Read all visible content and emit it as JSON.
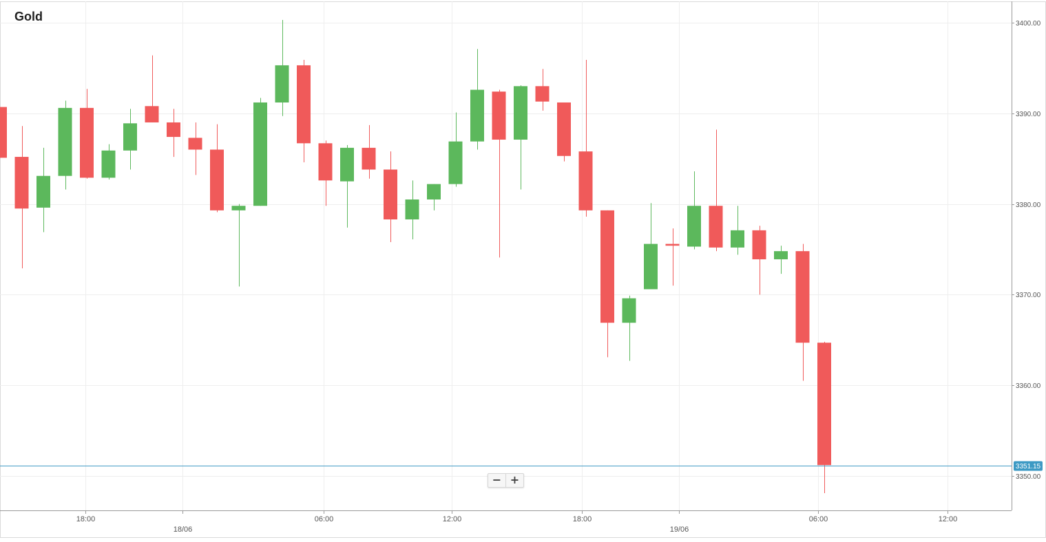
{
  "title": "Gold",
  "zoom": {
    "out_label": "−",
    "in_label": "+"
  },
  "colors": {
    "up": "#5cb85c",
    "down": "#f05a5a",
    "price_line": "#3d9ac4",
    "grid": "#eeeeee",
    "axis_text": "#555555"
  },
  "chart_data": {
    "type": "candlestick",
    "title": "Gold",
    "ylim": [
      3346,
      3402
    ],
    "y_ticks": [
      3400,
      3390,
      3380,
      3370,
      3360,
      3350
    ],
    "y_tick_labels": [
      "3400.00",
      "3390.00",
      "3380.00",
      "3370.00",
      "3360.00",
      "3350.00"
    ],
    "x_labels": [
      {
        "time": "18:00",
        "date": ""
      },
      {
        "time": "",
        "date": "18/06"
      },
      {
        "time": "06:00",
        "date": ""
      },
      {
        "time": "12:00",
        "date": ""
      },
      {
        "time": "18:00",
        "date": ""
      },
      {
        "time": "",
        "date": "19/06"
      },
      {
        "time": "06:00",
        "date": ""
      },
      {
        "time": "12:00",
        "date": ""
      }
    ],
    "current_price": 3351.15,
    "current_price_label": "3351.15",
    "candles": [
      {
        "o": 3390.7,
        "h": 3390.7,
        "l": 3385.1,
        "c": 3385.1
      },
      {
        "o": 3385.2,
        "h": 3388.6,
        "l": 3372.9,
        "c": 3379.5
      },
      {
        "o": 3379.6,
        "h": 3386.2,
        "l": 3376.9,
        "c": 3383.1
      },
      {
        "o": 3383.1,
        "h": 3391.4,
        "l": 3381.6,
        "c": 3390.6
      },
      {
        "o": 3390.6,
        "h": 3392.7,
        "l": 3382.8,
        "c": 3382.9
      },
      {
        "o": 3382.9,
        "h": 3386.6,
        "l": 3382.7,
        "c": 3385.9
      },
      {
        "o": 3385.9,
        "h": 3390.5,
        "l": 3383.8,
        "c": 3388.9
      },
      {
        "o": 3390.8,
        "h": 3396.4,
        "l": 3389.0,
        "c": 3389.0
      },
      {
        "o": 3389.0,
        "h": 3390.5,
        "l": 3385.2,
        "c": 3387.4
      },
      {
        "o": 3387.3,
        "h": 3389.0,
        "l": 3383.2,
        "c": 3386.0
      },
      {
        "o": 3386.0,
        "h": 3388.8,
        "l": 3379.1,
        "c": 3379.3
      },
      {
        "o": 3379.3,
        "h": 3380.0,
        "l": 3370.9,
        "c": 3379.8
      },
      {
        "o": 3379.8,
        "h": 3391.7,
        "l": 3379.8,
        "c": 3391.2
      },
      {
        "o": 3391.2,
        "h": 3400.3,
        "l": 3389.7,
        "c": 3395.3
      },
      {
        "o": 3395.3,
        "h": 3395.9,
        "l": 3384.6,
        "c": 3386.7
      },
      {
        "o": 3386.7,
        "h": 3387.0,
        "l": 3379.8,
        "c": 3382.6
      },
      {
        "o": 3382.5,
        "h": 3386.5,
        "l": 3377.4,
        "c": 3386.2
      },
      {
        "o": 3386.2,
        "h": 3388.7,
        "l": 3382.8,
        "c": 3383.8
      },
      {
        "o": 3383.8,
        "h": 3385.8,
        "l": 3375.8,
        "c": 3378.3
      },
      {
        "o": 3378.3,
        "h": 3382.6,
        "l": 3376.1,
        "c": 3380.5
      },
      {
        "o": 3380.5,
        "h": 3382.2,
        "l": 3379.3,
        "c": 3382.2
      },
      {
        "o": 3382.2,
        "h": 3390.1,
        "l": 3381.9,
        "c": 3386.9
      },
      {
        "o": 3386.9,
        "h": 3397.1,
        "l": 3386.0,
        "c": 3392.6
      },
      {
        "o": 3392.4,
        "h": 3392.6,
        "l": 3374.1,
        "c": 3387.1
      },
      {
        "o": 3387.1,
        "h": 3393.1,
        "l": 3381.6,
        "c": 3393.0
      },
      {
        "o": 3393.0,
        "h": 3394.9,
        "l": 3390.3,
        "c": 3391.3
      },
      {
        "o": 3391.2,
        "h": 3391.2,
        "l": 3384.7,
        "c": 3385.3
      },
      {
        "o": 3385.8,
        "h": 3395.9,
        "l": 3378.6,
        "c": 3379.3
      },
      {
        "o": 3379.3,
        "h": 3379.3,
        "l": 3363.1,
        "c": 3366.9
      },
      {
        "o": 3366.9,
        "h": 3369.9,
        "l": 3362.7,
        "c": 3369.6
      },
      {
        "o": 3370.6,
        "h": 3380.1,
        "l": 3370.6,
        "c": 3375.6
      },
      {
        "o": 3375.6,
        "h": 3377.3,
        "l": 3371.0,
        "c": 3375.4
      },
      {
        "o": 3375.3,
        "h": 3383.6,
        "l": 3375.0,
        "c": 3379.8
      },
      {
        "o": 3379.8,
        "h": 3388.2,
        "l": 3374.8,
        "c": 3375.2
      },
      {
        "o": 3375.2,
        "h": 3379.8,
        "l": 3374.4,
        "c": 3377.1
      },
      {
        "o": 3377.1,
        "h": 3377.6,
        "l": 3370.0,
        "c": 3373.9
      },
      {
        "o": 3373.9,
        "h": 3375.4,
        "l": 3372.3,
        "c": 3374.8
      },
      {
        "o": 3374.8,
        "h": 3375.6,
        "l": 3360.5,
        "c": 3364.7
      },
      {
        "o": 3364.7,
        "h": 3364.8,
        "l": 3348.1,
        "c": 3351.2
      }
    ]
  }
}
